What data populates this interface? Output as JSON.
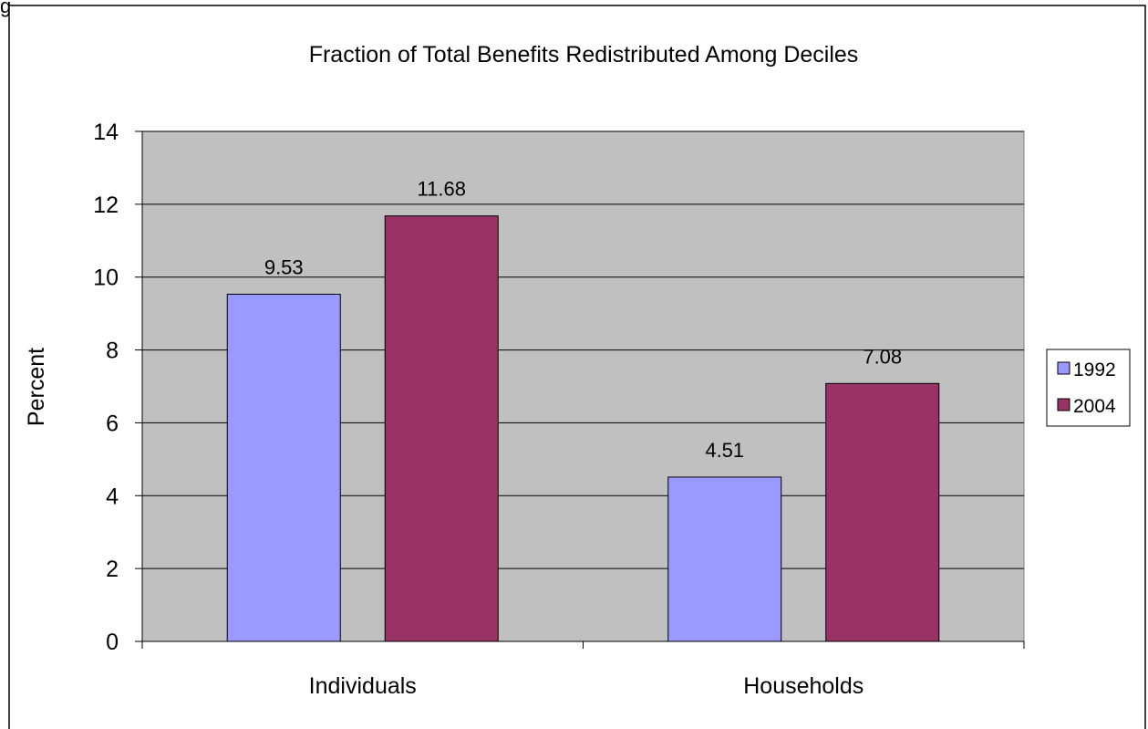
{
  "chart_data": {
    "type": "bar",
    "title": "Fraction of Total Benefits Redistributed Among Deciles",
    "xlabel": "",
    "ylabel": "Percent",
    "ylim": [
      0,
      14
    ],
    "yticks": [
      0,
      2,
      4,
      6,
      8,
      10,
      12,
      14
    ],
    "categories": [
      "Individuals",
      "Households"
    ],
    "series": [
      {
        "name": "1992",
        "color": "#9999ff",
        "values": [
          9.53,
          4.51
        ],
        "labels": [
          "9.53",
          "4.51"
        ]
      },
      {
        "name": "2004",
        "color": "#993366",
        "values": [
          11.68,
          7.08
        ],
        "labels": [
          "11.68",
          "7.08"
        ]
      }
    ],
    "grid": true,
    "legend": "right"
  },
  "corner_text": "g"
}
